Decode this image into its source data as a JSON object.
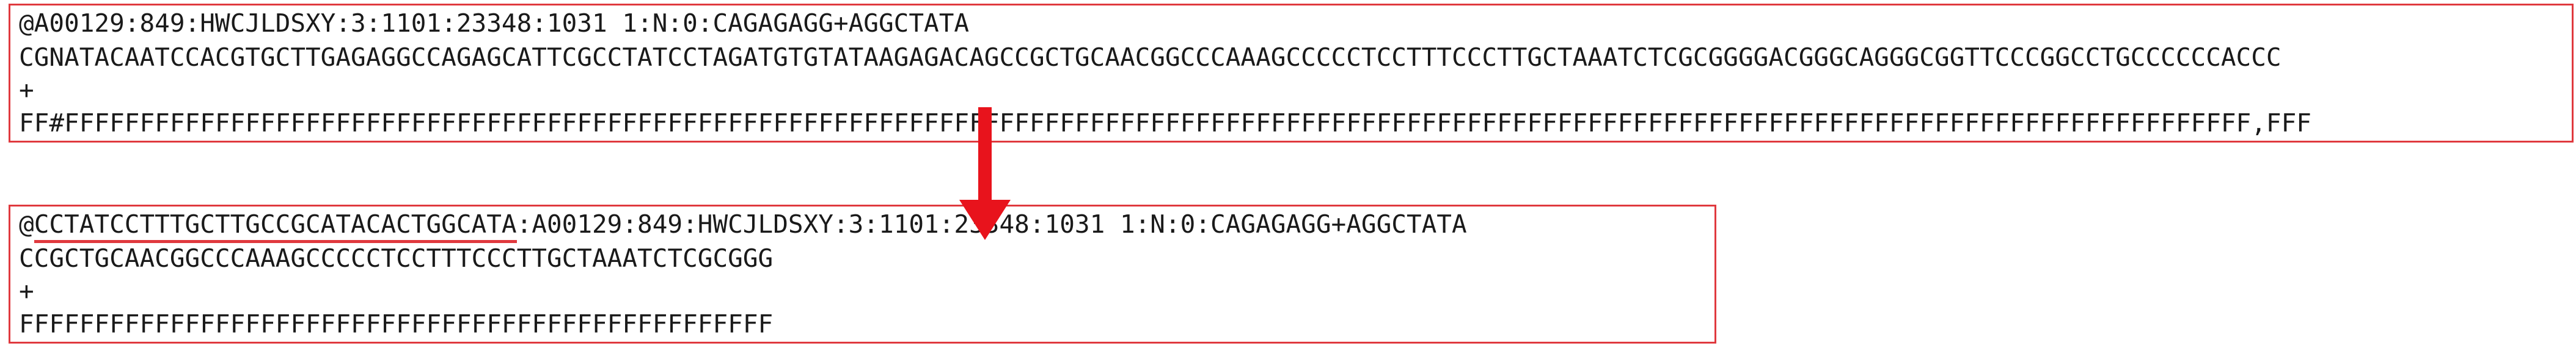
{
  "original_read": {
    "header": "@A00129:849:HWCJLDSXY:3:1101:23348:1031 1:N:0:CAGAGAGG+AGGCTATA",
    "sequence": "CGNATACAATCCACGTGCTTGAGAGGCCAGAGCATTCGCCTATCCTAGATGTGTATAAGAGACAGCCGCTGCAACGGCCCAAAGCCCCCTCCTTTCCCTTGCTAAATCTCGCGGGGACGGGCAGGGCGGTTCCCGGCCTGCCCCCCACCC",
    "separator": "+",
    "quality": "FF#FFFFFFFFFFFFFFFFFFFFFFFFFFFFFFFFFFFFFFFFFFFFFFFFFFFFFFFFFFFFFFFFFFFFFFFFFFFFFFFFFFFFFFFFFFFFFFFFFFFFFFFFFFFFFFFFFFFFFFFFFFFFFFFFFFFFFFFFFFFFFFFFF,FFF"
  },
  "processed_read": {
    "prefix": "@",
    "barcode": "CCTATCCTTTGCTTGCCGCATACACTGGCATA",
    "header_rest": ":A00129:849:HWCJLDSXY:3:1101:23348:1031 1:N:0:CAGAGAGG+AGGCTATA",
    "sequence": "CCGCTGCAACGGCCCAAAGCCCCCTCCTTTCCCTTGCTAAATCTCGCGGG",
    "separator": "+",
    "quality": "FFFFFFFFFFFFFFFFFFFFFFFFFFFFFFFFFFFFFFFFFFFFFFFFFF"
  },
  "colors": {
    "accent": "#e0393e",
    "text": "#1a1a1a"
  },
  "icons": {
    "arrow": "down-arrow-icon"
  }
}
